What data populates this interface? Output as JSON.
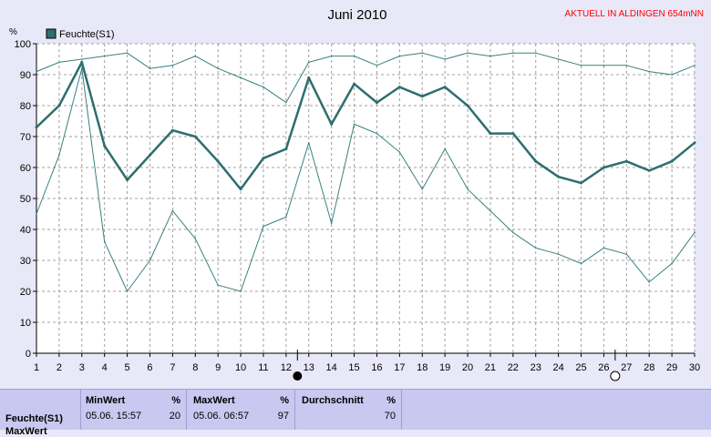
{
  "chart_data": {
    "type": "line",
    "title": "Juni 2010",
    "station_label": "AKTUELL IN ALDINGEN 654mNN",
    "ylabel": "%",
    "ylim": [
      0,
      100
    ],
    "yticks": [
      "0",
      "10",
      "20",
      "30",
      "40",
      "50",
      "60",
      "70",
      "80",
      "90",
      "100"
    ],
    "x": [
      1,
      2,
      3,
      4,
      5,
      6,
      7,
      8,
      9,
      10,
      11,
      12,
      13,
      14,
      15,
      16,
      17,
      18,
      19,
      20,
      21,
      22,
      23,
      24,
      25,
      26,
      27,
      28,
      29,
      30
    ],
    "xtick_labels": [
      "1",
      "2",
      "3",
      "4",
      "5",
      "6",
      "7",
      "8",
      "9",
      "10",
      "11",
      "12",
      "13",
      "14",
      "15",
      "16",
      "17",
      "18",
      "19",
      "20",
      "21",
      "22",
      "23",
      "24",
      "25",
      "26",
      "27",
      "28",
      "29",
      "30"
    ],
    "legend": {
      "label": "Feuchte(S1)",
      "color": "#2e6e6e",
      "position": "top-left"
    },
    "grid": true,
    "series": [
      {
        "name": "Feuchte(S1)",
        "role": "mean",
        "color": "#2e6e6e",
        "values": [
          73,
          80,
          94,
          67,
          56,
          64,
          72,
          70,
          62,
          53,
          63,
          66,
          89,
          74,
          87,
          81,
          86,
          83,
          86,
          80,
          71,
          71,
          62,
          57,
          55,
          60,
          62,
          59,
          62,
          68
        ]
      },
      {
        "role": "max",
        "color": "#3a8080",
        "values": [
          91,
          94,
          95,
          96,
          97,
          92,
          93,
          96,
          92,
          89,
          86,
          81,
          94,
          96,
          96,
          93,
          96,
          97,
          95,
          97,
          96,
          97,
          97,
          95,
          93,
          93,
          93,
          91,
          90,
          93
        ]
      },
      {
        "role": "min",
        "color": "#3a8080",
        "values": [
          45,
          64,
          92,
          36,
          20,
          30,
          46,
          37,
          22,
          20,
          41,
          44,
          68,
          42,
          74,
          71,
          65,
          53,
          66,
          53,
          46,
          39,
          34,
          32,
          29,
          34,
          32,
          23,
          29,
          39
        ]
      }
    ],
    "moon_markers": [
      {
        "x": 12.5,
        "phase": "new-moon"
      },
      {
        "x": 26.5,
        "phase": "full-moon"
      }
    ],
    "colors": {
      "background": "#e8e8f8",
      "plot_background": "#ffffff",
      "grid": "#a0a0a0",
      "title_red": "#ff0000"
    }
  },
  "stats_panel": {
    "row_label": "Feuchte(S1)",
    "row2_label": "MaxWert",
    "min": {
      "header": "MinWert",
      "unit": "%",
      "time": "05.06.  15:57",
      "value": "20"
    },
    "max": {
      "header": "MaxWert",
      "unit": "%",
      "time": "05.06.  06:57",
      "value": "97"
    },
    "avg": {
      "header": "Durchschnitt",
      "unit": "%",
      "value": "70"
    }
  }
}
